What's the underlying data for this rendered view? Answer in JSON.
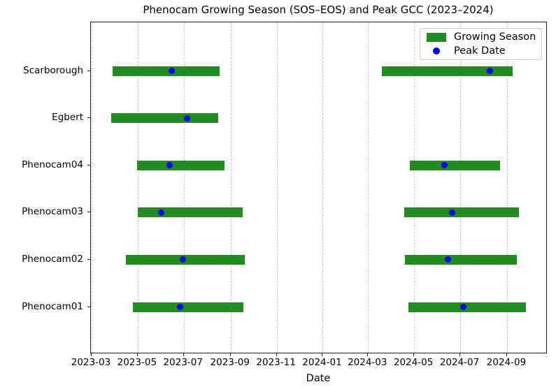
{
  "chart_data": {
    "type": "bar",
    "subtype": "gantt-timeline",
    "title": "Phenocam Growing Season (SOS–EOS) and Peak GCC (2023–2024)",
    "xlabel": "Date",
    "ylabel": "",
    "x_ticks": [
      "2023-03",
      "2023-05",
      "2023-07",
      "2023-09",
      "2023-11",
      "2024-01",
      "2024-03",
      "2024-05",
      "2024-07",
      "2024-09"
    ],
    "x_range": [
      "2023-02-27",
      "2024-10-25"
    ],
    "grid": "vertical-dashed",
    "legend_position": "upper right",
    "legend": [
      {
        "label": "Growing Season",
        "marker": "bar",
        "color": "#228B22"
      },
      {
        "label": "Peak Date",
        "marker": "dot",
        "color": "#0000FF"
      }
    ],
    "colors": {
      "bar": "#228B22",
      "dot": "#0000FF"
    },
    "sites_top_to_bottom": [
      "Scarborough",
      "Egbert",
      "Phenocam04",
      "Phenocam03",
      "Phenocam02",
      "Phenocam01"
    ],
    "series": [
      {
        "site": "Scarborough",
        "seasons": [
          {
            "start": "2023-03-29",
            "end": "2023-08-17",
            "peak": "2023-06-15"
          },
          {
            "start": "2024-03-19",
            "end": "2024-09-08",
            "peak": "2024-08-09"
          }
        ]
      },
      {
        "site": "Egbert",
        "seasons": [
          {
            "start": "2023-03-27",
            "end": "2023-08-16",
            "peak": "2023-07-05"
          }
        ]
      },
      {
        "site": "Phenocam04",
        "seasons": [
          {
            "start": "2023-04-30",
            "end": "2023-08-24",
            "peak": "2023-06-12"
          },
          {
            "start": "2024-04-25",
            "end": "2024-08-23",
            "peak": "2024-06-10"
          }
        ]
      },
      {
        "site": "Phenocam03",
        "seasons": [
          {
            "start": "2023-05-01",
            "end": "2023-09-17",
            "peak": "2023-06-01"
          },
          {
            "start": "2024-04-18",
            "end": "2024-09-17",
            "peak": "2024-06-20"
          }
        ]
      },
      {
        "site": "Phenocam02",
        "seasons": [
          {
            "start": "2023-04-15",
            "end": "2023-09-20",
            "peak": "2023-06-30"
          },
          {
            "start": "2024-04-19",
            "end": "2024-09-14",
            "peak": "2024-06-15"
          }
        ]
      },
      {
        "site": "Phenocam01",
        "seasons": [
          {
            "start": "2023-04-25",
            "end": "2023-09-18",
            "peak": "2023-06-26"
          },
          {
            "start": "2024-04-23",
            "end": "2024-09-26",
            "peak": "2024-07-05"
          }
        ]
      }
    ]
  }
}
